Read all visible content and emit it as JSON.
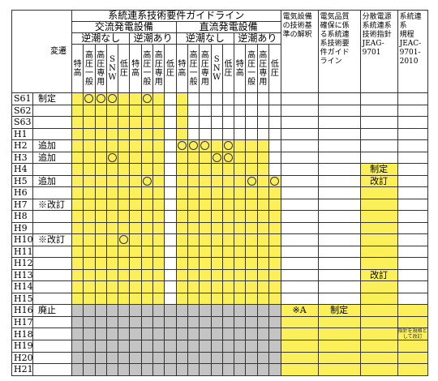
{
  "header": {
    "main_title": "系統連系技術要件ガイドライン",
    "ac_title": "交流発電設備",
    "dc_title": "直流発電設備",
    "ac_no_reverse": "逆潮なし",
    "ac_reverse": "逆潮あり",
    "dc_no_reverse": "逆潮なし",
    "dc_reverse": "逆潮あり",
    "change_label": "変遷",
    "ac_cols": [
      [
        "特",
        "",
        "高"
      ],
      [
        "高",
        "圧",
        "一",
        "般"
      ],
      [
        "高",
        "圧",
        "専",
        "用"
      ],
      [
        "S",
        "N",
        "W"
      ],
      [
        "低",
        "",
        "圧"
      ],
      [
        "特",
        "",
        "高"
      ],
      [
        "高",
        "圧",
        "一",
        "般"
      ],
      [
        "高",
        "圧",
        "専",
        "用"
      ],
      [
        "低",
        "",
        "圧"
      ]
    ],
    "dc_cols": [
      [
        "特",
        "",
        "高"
      ],
      [
        "高",
        "圧",
        "一",
        "般"
      ],
      [
        "高",
        "圧",
        "専",
        "用"
      ],
      [
        "S",
        "N",
        "W"
      ],
      [
        "低",
        "",
        "圧"
      ],
      [
        "特",
        "",
        "高"
      ],
      [
        "高",
        "圧",
        "一",
        "般"
      ],
      [
        "高",
        "圧",
        "専",
        "用"
      ],
      [
        "低",
        "",
        "圧"
      ]
    ],
    "col_elec": [
      "電気設備",
      "の技術基",
      "準の解釈"
    ],
    "col_quality": [
      "電気品質",
      "確保に係",
      "る系統連",
      "系技術要",
      "件ガイド",
      "ライン"
    ],
    "col_guideline": [
      "分散電源",
      "系統連系",
      "技術指針",
      "JEAG-",
      "9701"
    ],
    "col_rule": [
      "系統連系",
      "規程",
      "JEAC-",
      "9701-",
      "2010"
    ]
  },
  "rows": [
    {
      "era": "S61",
      "event": "制定",
      "cells": "YOOOYYOYOY..................",
      "tail": [
        "",
        "",
        "",
        ""
      ]
    },
    {
      "era": "S62",
      "event": "",
      "cells": "",
      "tail": [
        "",
        "",
        "",
        ""
      ]
    },
    {
      "era": "S63",
      "event": "",
      "cells": "",
      "tail": [
        "",
        "",
        "",
        ""
      ]
    },
    {
      "era": "H1",
      "event": "",
      "cells": "",
      "tail": [
        "",
        "",
        "",
        ""
      ]
    },
    {
      "era": "H2",
      "event": "追加",
      "cells": "",
      "tail": [
        "",
        "",
        "",
        ""
      ]
    },
    {
      "era": "H3",
      "event": "追加",
      "cells": "",
      "tail": [
        "",
        "",
        "",
        ""
      ]
    },
    {
      "era": "H4",
      "event": "",
      "cells": "",
      "tail": [
        "",
        "",
        "制定",
        ""
      ]
    },
    {
      "era": "H5",
      "event": "追加",
      "cells": "",
      "tail": [
        "",
        "",
        "改訂",
        ""
      ]
    },
    {
      "era": "H6",
      "event": "",
      "cells": "",
      "tail": [
        "",
        "",
        "",
        ""
      ]
    },
    {
      "era": "H7",
      "event": "※改訂",
      "cells": "",
      "tail": [
        "",
        "",
        "",
        ""
      ]
    },
    {
      "era": "H8",
      "event": "",
      "cells": "",
      "tail": [
        "",
        "",
        "",
        ""
      ]
    },
    {
      "era": "H9",
      "event": "",
      "cells": "",
      "tail": [
        "",
        "",
        "",
        ""
      ]
    },
    {
      "era": "H10",
      "event": "※改訂",
      "cells": "",
      "tail": [
        "",
        "",
        "",
        ""
      ]
    },
    {
      "era": "H11",
      "event": "",
      "cells": "",
      "tail": [
        "",
        "",
        "",
        ""
      ]
    },
    {
      "era": "H12",
      "event": "",
      "cells": "",
      "tail": [
        "",
        "",
        "",
        ""
      ]
    },
    {
      "era": "H13",
      "event": "",
      "cells": "",
      "tail": [
        "",
        "",
        "改訂",
        ""
      ]
    },
    {
      "era": "H14",
      "event": "",
      "cells": "",
      "tail": [
        "",
        "",
        "",
        ""
      ]
    },
    {
      "era": "H15",
      "event": "",
      "cells": "",
      "tail": [
        "",
        "",
        "",
        ""
      ]
    },
    {
      "era": "H16",
      "event": "廃止",
      "cells": "",
      "tail": [
        "※A",
        "制定",
        "",
        ""
      ]
    },
    {
      "era": "H17",
      "event": "",
      "cells": "",
      "tail": [
        "",
        "",
        "",
        ""
      ]
    },
    {
      "era": "H18",
      "event": "",
      "cells": "",
      "tail": [
        "",
        "",
        "",
        "指針を規格として改訂"
      ]
    },
    {
      "era": "H19",
      "event": "",
      "cells": "",
      "tail": [
        "",
        "",
        "",
        ""
      ]
    },
    {
      "era": "H20",
      "event": "",
      "cells": "",
      "tail": [
        "",
        "",
        "",
        ""
      ]
    },
    {
      "era": "H21",
      "event": "",
      "cells": "",
      "tail": [
        "",
        "",
        "",
        ""
      ]
    }
  ],
  "grid": [
    "YOOOY.YOY.Y........",
    "YYYYY.YYY.Y........",
    "YYYYY.YYY.Y........",
    "YYYYY.YYY.Y........",
    "YYYYY.YYY.OOOYOYYY.",
    "YYYOY.YYY.YYYOOYYY.",
    "YYYYY.YYY.YYYYYYYY.",
    "YYYYY.YOY.YYYYYYOYO",
    "YYYYY.YYY.YYYYYYYYY",
    "YYYYY.YYY.YYYYYYYYY",
    "YYYYY.YYY.YYYYYYYYY",
    "YYYYY.YYY.YYYYYYYYY",
    "YYYYO.YYY.YYYYYYYYY",
    "YYYYY.YYY.YYYYYYYYY",
    "YYYYY.YYY.YYYYYYYYY",
    "YYYYY.YYY.YYYYYYYYY",
    "YYYYY.YYY.YYYYYYYYY",
    "YYYYY.YYY.YYYYYYYYY",
    "GGGGGGGGGGGGGGGGGGG",
    "GGGGGGGGGGGGGGGGGGG",
    "GGGGGGGGGGGGGGGGGGG",
    "GGGGGGGGGGGGGGGGGGG",
    "GGGGGGGGGGGGGGGGGGG",
    "GGGGGGGGGGGGGGGGGGG"
  ],
  "tail_fill": [
    "....",
    "....",
    "....",
    "....",
    "....",
    "....",
    "..Y.",
    "..Y.",
    "..Y.",
    "..Y.",
    "..Y.",
    "..Y.",
    "..Y.",
    "..Y.",
    "..Y.",
    "..Y.",
    "..Y.",
    "..Y.",
    "YYYY",
    "YYYY",
    "YYYY",
    "YYYY",
    "YYYY",
    "YYYY"
  ],
  "colors": {
    "yellow": "#fbf05a",
    "gray": "#c4c4c4",
    "line": "#333333"
  }
}
